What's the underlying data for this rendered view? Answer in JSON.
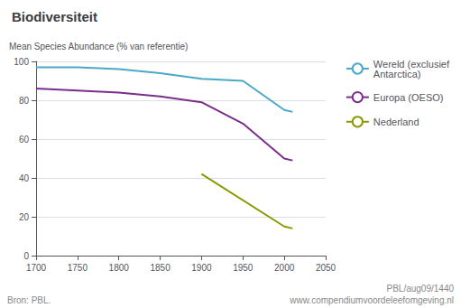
{
  "chart_data": {
    "type": "line",
    "title": "Biodiversiteit",
    "y_label": "Mean Species Abundance (% van referentie)",
    "annotations": [
      "Bron: PBL.",
      "PBL/aug09/1440",
      "www.compendiumvoordeleefomgeving.nl"
    ],
    "xlim": [
      1700,
      2050
    ],
    "ylim": [
      0,
      100
    ],
    "xticks": [
      1700,
      1750,
      1800,
      1850,
      1900,
      1950,
      2000,
      2050
    ],
    "yticks": [
      0,
      20,
      40,
      60,
      80,
      100
    ],
    "grid": true,
    "legend": "right",
    "series": [
      {
        "name": "Wereld (exclusief\nAntarctica)",
        "color": "#4aa8c8",
        "x": [
          1700,
          1750,
          1800,
          1850,
          1900,
          1950,
          2000,
          2010
        ],
        "values": [
          97,
          97,
          96,
          94,
          91,
          90,
          75,
          74
        ]
      },
      {
        "name": "Europa (OESO)",
        "color": "#7b2d8b",
        "x": [
          1700,
          1750,
          1800,
          1850,
          1900,
          1950,
          2000,
          2010
        ],
        "values": [
          86,
          85,
          84,
          82,
          79,
          68,
          50,
          49
        ]
      },
      {
        "name": "Nederland",
        "color": "#8b9900",
        "x": [
          1900,
          2000,
          2010
        ],
        "values": [
          42,
          15,
          14
        ]
      }
    ]
  }
}
